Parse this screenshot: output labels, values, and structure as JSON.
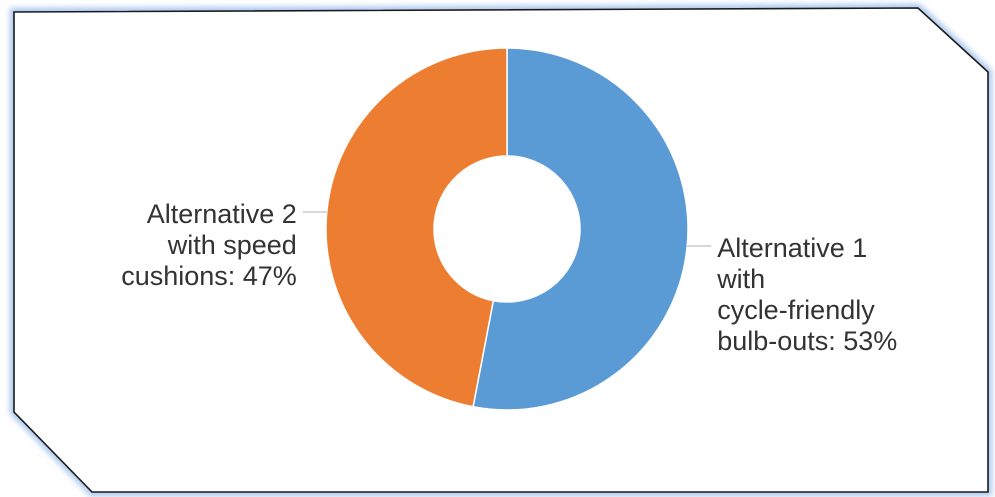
{
  "chart_data": {
    "type": "pie",
    "donut": true,
    "categories": [
      "Alternative 1 with cycle-friendly bulb-outs",
      "Alternative 2 with speed cushions"
    ],
    "values": [
      53,
      47
    ],
    "unit": "%",
    "colors": [
      "#5b9bd5",
      "#ed7d31"
    ],
    "labels": [
      {
        "lines": [
          "Alternative 1",
          "with",
          "cycle-friendly",
          "bulb-outs: 53%"
        ]
      },
      {
        "lines": [
          "Alternative 2",
          "with speed",
          "cushions: 47%"
        ]
      }
    ],
    "legend": "none",
    "title": ""
  }
}
